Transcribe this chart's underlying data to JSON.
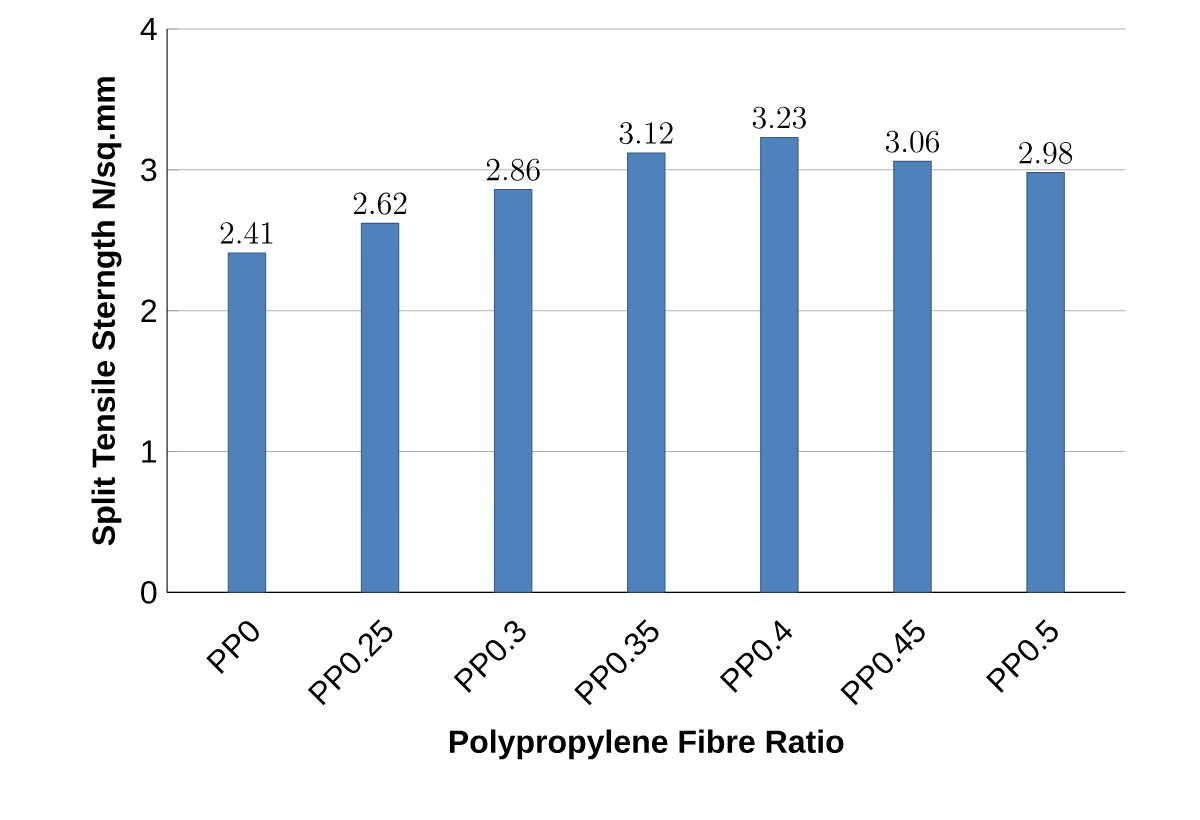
{
  "chart_data": {
    "type": "bar",
    "xlabel": "Polypropylene Fibre Ratio",
    "ylabel": "Split Tensile Sterngth N/sq.mm",
    "categories": [
      "PP0",
      "PP0.25",
      "PP0.3",
      "PP0.35",
      "PP0.4",
      "PP0.45",
      "PP0.5"
    ],
    "values": [
      2.41,
      2.62,
      2.86,
      3.12,
      3.23,
      3.06,
      2.98
    ],
    "color": "#4f81bd",
    "ylim": [
      0,
      4
    ],
    "yticks": [
      0,
      1,
      2,
      3,
      4
    ],
    "grid": "y",
    "data_labels": true
  }
}
